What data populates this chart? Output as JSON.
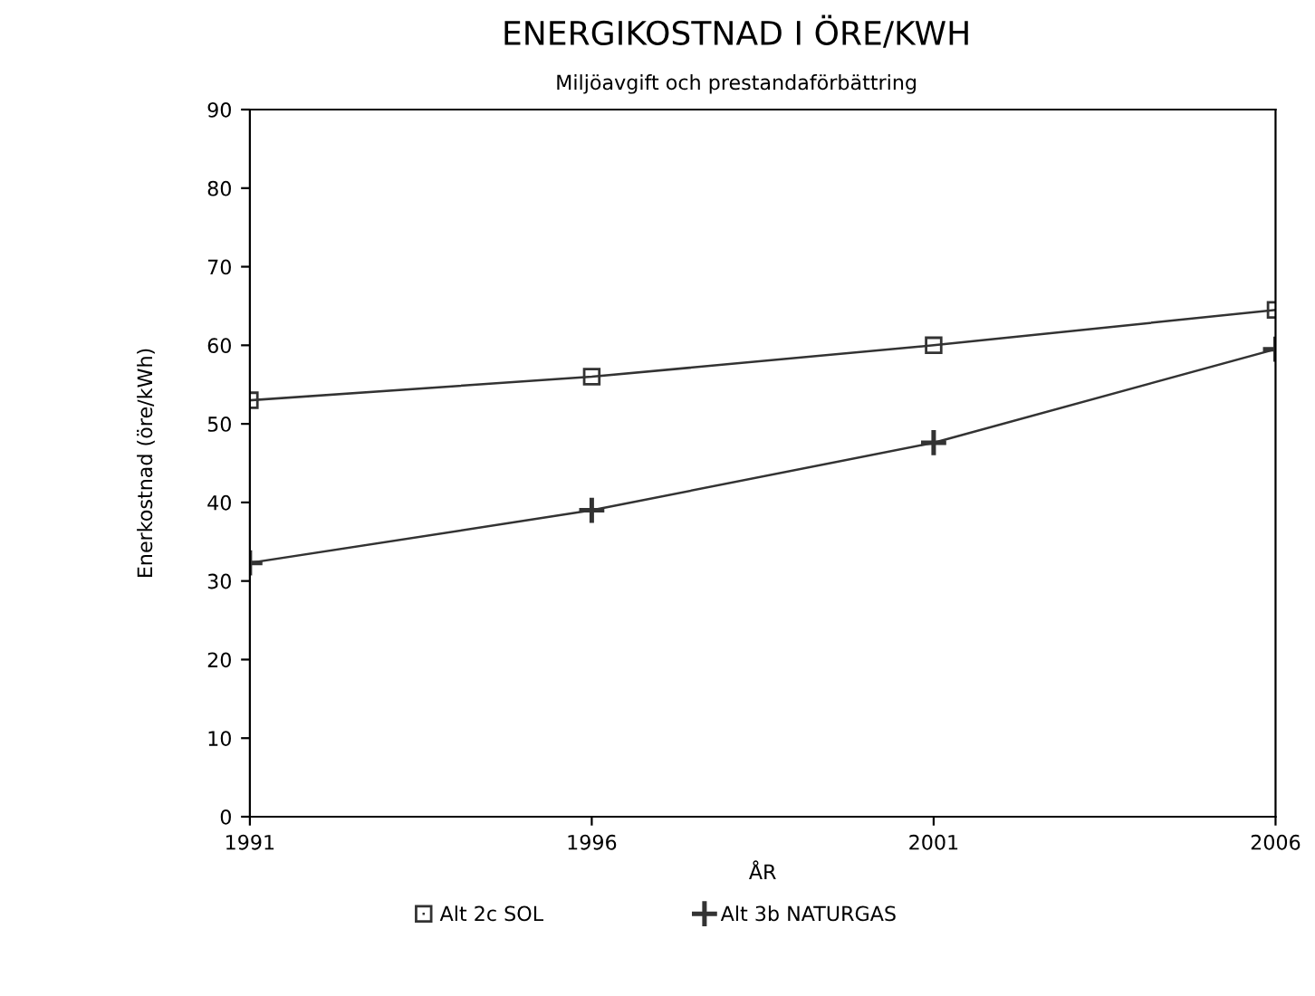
{
  "chart_data": {
    "type": "line",
    "title": "ENERGIKOSTNAD I ÖRE/KWH",
    "subtitle": "Miljöavgift och prestandaförbättring",
    "xlabel": "ÅR",
    "ylabel": "Enerkostnad (öre/kWh)",
    "x": [
      1991,
      1996,
      2001,
      2006
    ],
    "xlim": [
      1991,
      2006
    ],
    "xticks": [
      1991,
      1996,
      2001,
      2006
    ],
    "ylim": [
      0,
      90
    ],
    "yticks": [
      0,
      10,
      20,
      30,
      40,
      50,
      60,
      70,
      80,
      90
    ],
    "series": [
      {
        "name": "Alt 2c SOL",
        "color": "#333333",
        "marker": "square",
        "values": [
          53,
          56,
          60,
          64.5
        ]
      },
      {
        "name": "Alt 3b NATURGAS",
        "color": "#333333",
        "marker": "cross",
        "values": [
          32.3,
          39,
          47.6,
          59.5
        ]
      }
    ],
    "legend": "bottom",
    "grid": false
  }
}
